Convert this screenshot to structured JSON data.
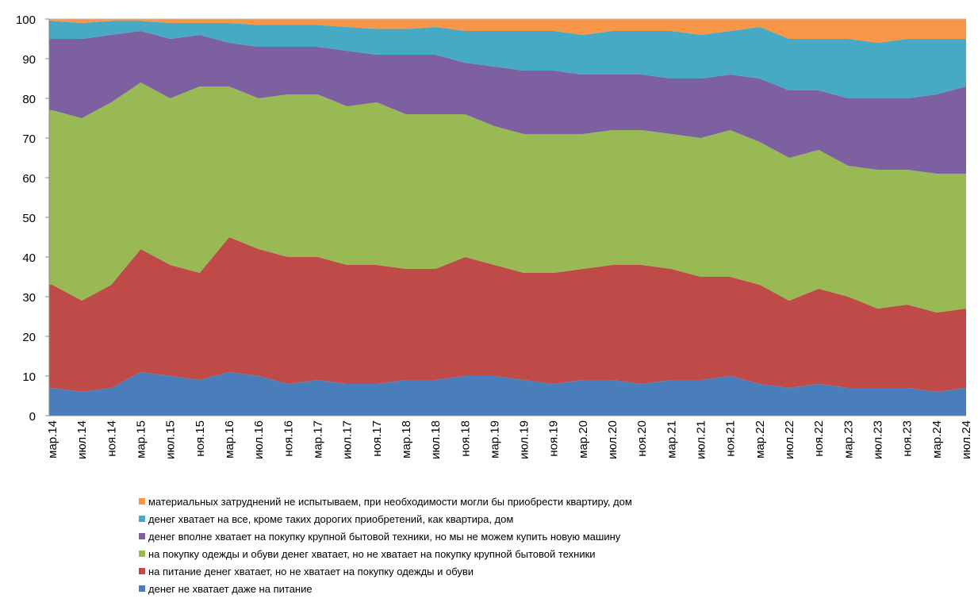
{
  "chart_data": {
    "type": "stacked_area",
    "categories": [
      "мар.14",
      "июл.14",
      "ноя.14",
      "мар.15",
      "июл.15",
      "ноя.15",
      "мар.16",
      "июл.16",
      "ноя.16",
      "мар.17",
      "июл.17",
      "ноя.17",
      "мар.18",
      "июл.18",
      "ноя.18",
      "мар.19",
      "июл.19",
      "ноя.19",
      "мар.20",
      "июл.20",
      "ноя.20",
      "мар.21",
      "июл.21",
      "ноя.21",
      "мар.22",
      "июл.22",
      "ноя.22",
      "мар.23",
      "июл.23",
      "ноя.23",
      "мар.24",
      "июл.24"
    ],
    "series": [
      {
        "name": "денег не хватает даже на питание",
        "color": "#4a7ebb",
        "values": [
          7,
          6,
          7,
          11,
          10,
          9,
          11,
          10,
          8,
          9,
          8,
          8,
          9,
          9,
          10,
          10,
          9,
          8,
          9,
          9,
          8,
          9,
          9,
          10,
          8,
          7,
          8,
          7,
          7,
          7,
          6,
          7
        ]
      },
      {
        "name": "на питание денег хватает, но не хватает на покупку одежды и обуви",
        "color": "#be4b48",
        "values": [
          26,
          23,
          26,
          31,
          28,
          27,
          34,
          32,
          32,
          31,
          30,
          30,
          28,
          28,
          30,
          28,
          27,
          28,
          28,
          29,
          30,
          28,
          26,
          25,
          25,
          22,
          24,
          23,
          20,
          21,
          20,
          20
        ]
      },
      {
        "name": "на покупку одежды и обуви денег хватает, но не хватает на покупку крупной бытовой техники",
        "color": "#98b954",
        "values": [
          44,
          46,
          46,
          42,
          42,
          47,
          38,
          38,
          41,
          41,
          40,
          41,
          39,
          39,
          36,
          35,
          35,
          35,
          34,
          34,
          34,
          34,
          35,
          37,
          36,
          36,
          35,
          33,
          35,
          34,
          35,
          34
        ]
      },
      {
        "name": "денег вполне хватает на покупку крупной бытовой техники, но мы не можем купить новую машину",
        "color": "#7d60a0",
        "values": [
          18,
          20,
          17,
          13,
          15,
          13,
          11,
          13,
          12,
          12,
          14,
          12,
          15,
          15,
          13,
          15,
          16,
          16,
          15,
          14,
          14,
          14,
          15,
          14,
          16,
          17,
          15,
          17,
          18,
          18,
          20,
          22
        ]
      },
      {
        "name": "денег хватает на все, кроме таких дорогих приобретений, как квартира, дом",
        "color": "#46aac5",
        "values": [
          4.5,
          4,
          3.5,
          2.5,
          4,
          3,
          5,
          5.5,
          5.5,
          5.5,
          6,
          6.5,
          6.5,
          7,
          8,
          9,
          10,
          10,
          10,
          11,
          11,
          12,
          11,
          11,
          13,
          13,
          13,
          15,
          14,
          15,
          14,
          12
        ]
      },
      {
        "name": "материальных затруднений не испытываем, при необходимости могли бы приобрести квартиру, дом",
        "color": "#f79646",
        "values": [
          0.5,
          1,
          0.5,
          0.5,
          1,
          1,
          1,
          1.5,
          1.5,
          1.5,
          2,
          2.5,
          2.5,
          2,
          3,
          3,
          3,
          3,
          4,
          3,
          3,
          3,
          4,
          3,
          2,
          5,
          5,
          5,
          6,
          5,
          5,
          5
        ]
      }
    ],
    "ylim": [
      0,
      100
    ],
    "yticks": [
      0,
      10,
      20,
      30,
      40,
      50,
      60,
      70,
      80,
      90,
      100
    ]
  }
}
